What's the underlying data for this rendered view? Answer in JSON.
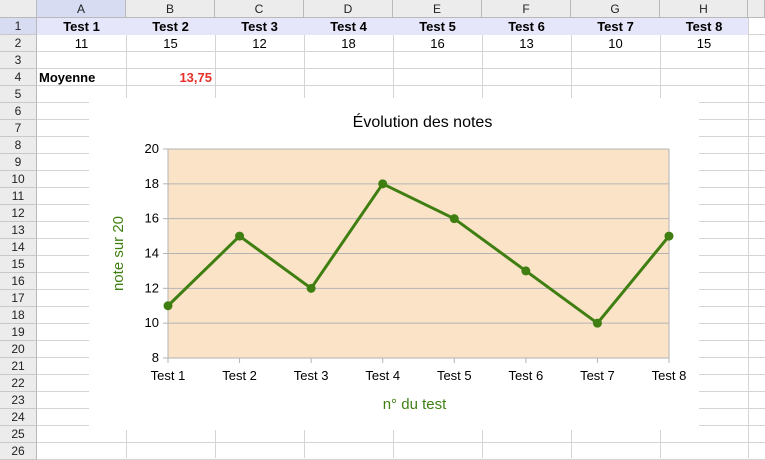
{
  "sheet": {
    "columns": [
      "A",
      "B",
      "C",
      "D",
      "E",
      "F",
      "G",
      "H"
    ],
    "rows": [
      "1",
      "2",
      "3",
      "4",
      "5",
      "6",
      "7",
      "8",
      "9",
      "10",
      "11",
      "12",
      "13",
      "14",
      "15",
      "16",
      "17",
      "18",
      "19",
      "20",
      "21",
      "22",
      "23",
      "24",
      "25",
      "26"
    ],
    "row1": [
      "Test 1",
      "Test 2",
      "Test 3",
      "Test 4",
      "Test 5",
      "Test 6",
      "Test 7",
      "Test 8"
    ],
    "row2": [
      "11",
      "15",
      "12",
      "18",
      "16",
      "13",
      "10",
      "15"
    ],
    "a4": "Moyenne",
    "b4": "13,75"
  },
  "colors": {
    "plot_area": "#fbe3c8",
    "series_line": "#3f7f12",
    "axis_title": "#3f7f12",
    "average": "#e8302a",
    "header_highlight": "#e6e6fa"
  },
  "chart_data": {
    "type": "line",
    "title": "Évolution des notes",
    "xlabel": "n° du test",
    "ylabel": "note sur 20",
    "categories": [
      "Test 1",
      "Test 2",
      "Test 3",
      "Test 4",
      "Test 5",
      "Test 6",
      "Test 7",
      "Test 8"
    ],
    "values": [
      11,
      15,
      12,
      18,
      16,
      13,
      10,
      15
    ],
    "ylim": [
      8,
      20
    ],
    "yticks": [
      "8",
      "10",
      "12",
      "14",
      "16",
      "18",
      "20"
    ],
    "grid": true,
    "legend": "none"
  }
}
